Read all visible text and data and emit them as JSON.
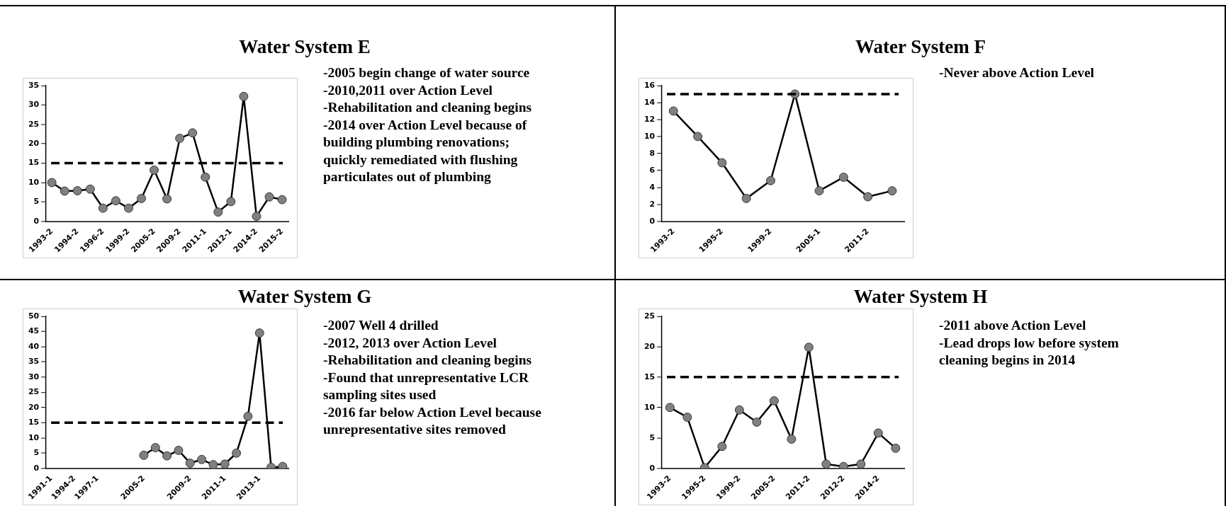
{
  "chart_data": [
    {
      "type": "line",
      "title": "Water System E",
      "categories": [
        "1993-2",
        null,
        "1994-2",
        null,
        "1996-2",
        null,
        "1999-2",
        null,
        "2005-2",
        null,
        "2009-2",
        null,
        "2011-1",
        null,
        "2012-1",
        null,
        "2014-2",
        null,
        "2015-2"
      ],
      "series": [
        {
          "color": "#000000",
          "values": [
            10,
            7.8,
            7.9,
            8.3,
            3.4,
            5.3,
            3.4,
            5.9,
            13.2,
            5.8,
            21.4,
            22.8,
            11.4,
            2.4,
            5.1,
            32.2,
            1.3,
            6.3,
            5.6
          ]
        }
      ],
      "ylim": [
        0,
        35
      ],
      "yticks": [
        0,
        5,
        10,
        15,
        20,
        25,
        30,
        35
      ],
      "grid": false,
      "marker": "circle",
      "ref_lines": [
        {
          "axis": "y",
          "value": 15,
          "color": "#000000",
          "line_style": "dashed"
        }
      ],
      "annotations": [
        "-2005 begin change of water source",
        "-2010,2011 over Action Level",
        "-Rehabilitation and cleaning begins",
        "-2014 over Action Level because of",
        "building plumbing renovations;",
        "quickly remediated with flushing",
        "particulates out of plumbing"
      ]
    },
    {
      "type": "line",
      "title": "Water System F",
      "categories": [
        "1993-2",
        null,
        "1995-2",
        null,
        "1999-2",
        null,
        "2005-1",
        null,
        "2011-2",
        null
      ],
      "series": [
        {
          "color": "#000000",
          "values": [
            13,
            10,
            6.9,
            2.7,
            4.8,
            15,
            3.6,
            5.2,
            2.9,
            3.6
          ]
        }
      ],
      "ylim": [
        0,
        16
      ],
      "yticks": [
        0,
        2,
        4,
        6,
        8,
        10,
        12,
        14,
        16
      ],
      "grid": false,
      "marker": "circle",
      "ref_lines": [
        {
          "axis": "y",
          "value": 15,
          "color": "#000000",
          "line_style": "dashed"
        }
      ],
      "annotations": [
        "-Never above Action Level"
      ]
    },
    {
      "type": "line",
      "title": "Water System G",
      "categories": [
        "1991-1",
        null,
        "1994-2",
        null,
        "1997-1",
        null,
        null,
        null,
        "2005-2",
        null,
        null,
        null,
        "2009-2",
        null,
        null,
        "2011-1",
        null,
        null,
        "2013-1",
        null,
        null
      ],
      "series": [
        {
          "color": "#000000",
          "values": [
            null,
            null,
            null,
            null,
            null,
            null,
            null,
            null,
            4.3,
            6.8,
            4.1,
            5.9,
            1.7,
            2.9,
            1.2,
            1.4,
            5.0,
            17.1,
            44.5,
            0.3,
            0.6
          ]
        }
      ],
      "ylim": [
        0,
        50
      ],
      "yticks": [
        0,
        5,
        10,
        15,
        20,
        25,
        30,
        35,
        40,
        45,
        50
      ],
      "grid": false,
      "marker": "circle",
      "ref_lines": [
        {
          "axis": "y",
          "value": 15,
          "color": "#000000",
          "line_style": "dashed"
        }
      ],
      "annotations": [
        "-2007 Well 4 drilled",
        "-2012, 2013 over Action Level",
        "-Rehabilitation and cleaning begins",
        "-Found that unrepresentative LCR",
        "sampling sites used",
        "-2016 far below Action Level because",
        "unrepresentative sites removed"
      ]
    },
    {
      "type": "line",
      "title": "Water System H",
      "categories": [
        "1993-2",
        null,
        "1995-2",
        null,
        "1999-2",
        null,
        "2005-2",
        null,
        "2011-2",
        null,
        "2012-2",
        null,
        "2014-2",
        null
      ],
      "series": [
        {
          "color": "#000000",
          "values": [
            10,
            8.4,
            0.1,
            3.6,
            9.6,
            7.6,
            11.1,
            4.8,
            19.9,
            0.7,
            0.3,
            0.7,
            5.8,
            3.3
          ]
        }
      ],
      "ylim": [
        0,
        25
      ],
      "yticks": [
        0,
        5,
        10,
        15,
        20,
        25
      ],
      "grid": false,
      "marker": "circle",
      "ref_lines": [
        {
          "axis": "y",
          "value": 15,
          "color": "#000000",
          "line_style": "dashed"
        }
      ],
      "annotations": [
        "-2011 above Action Level",
        "-Lead drops low before system",
        "cleaning begins in 2014"
      ]
    }
  ]
}
